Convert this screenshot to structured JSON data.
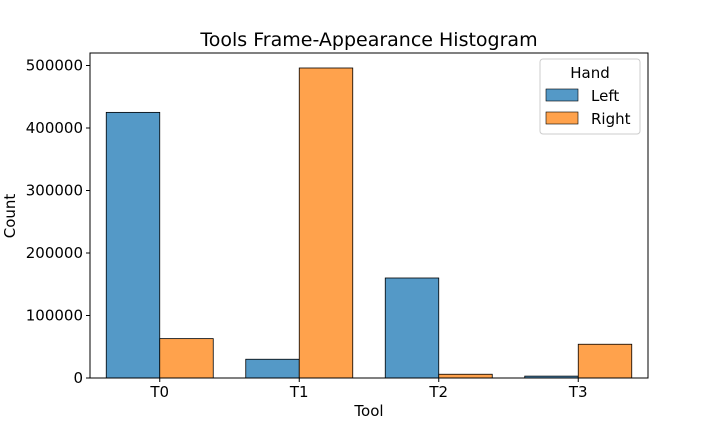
{
  "chart_data": {
    "type": "bar",
    "title": "Tools Frame-Appearance Histogram",
    "xlabel": "Tool",
    "ylabel": "Count",
    "categories": [
      "T0",
      "T1",
      "T2",
      "T3"
    ],
    "series": [
      {
        "name": "Left",
        "color": "#5499c7",
        "values": [
          425000,
          30000,
          160000,
          3000
        ]
      },
      {
        "name": "Right",
        "color": "#ffa24c",
        "values": [
          63000,
          496000,
          6000,
          54000
        ]
      }
    ],
    "ylim": [
      0,
      520000
    ],
    "yticks": [
      0,
      100000,
      200000,
      300000,
      400000,
      500000
    ],
    "ytick_labels": [
      "0",
      "100000",
      "200000",
      "300000",
      "400000",
      "500000"
    ],
    "legend": {
      "title": "Hand",
      "position": "top-right"
    },
    "grid": false
  }
}
